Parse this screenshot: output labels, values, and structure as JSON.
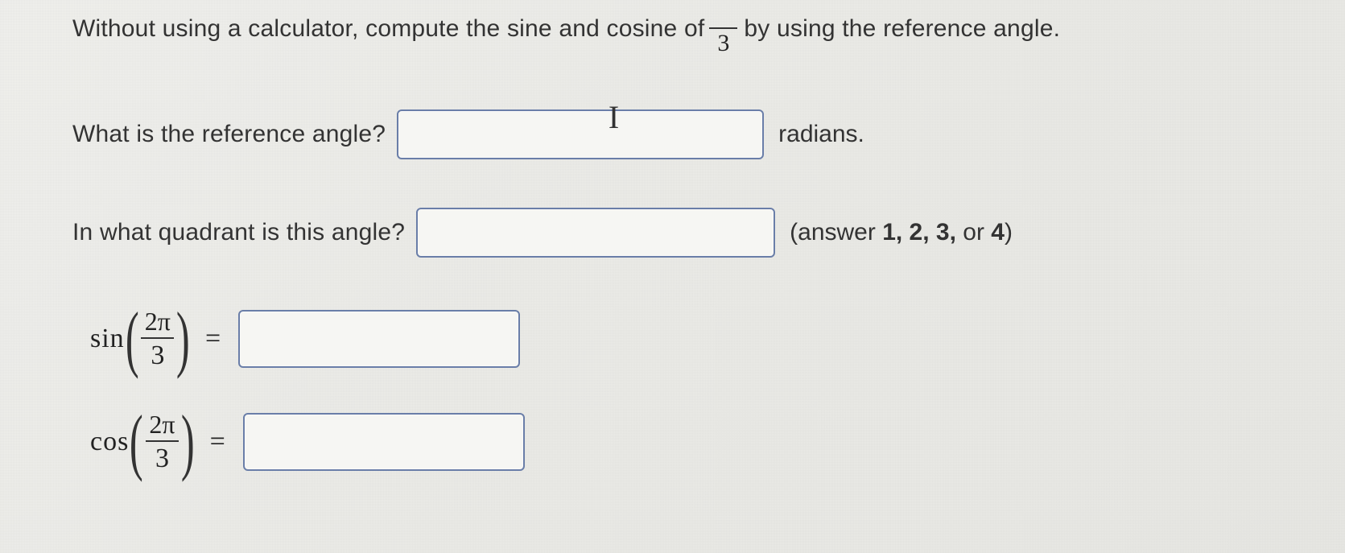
{
  "question": {
    "line1_before": "Without using a calculator, compute the sine and cosine of ",
    "angle_numerator": "",
    "angle_denominator": "3",
    "line1_after": " by using the reference angle."
  },
  "ref_angle": {
    "prompt": "What is the reference angle?",
    "after": "radians."
  },
  "quadrant": {
    "prompt": "In what quadrant is this angle?",
    "after_pre": "(answer ",
    "opts": "1, 2, 3, ",
    "opts_or": "or ",
    "opts_last": "4",
    "after_post": ")"
  },
  "sin": {
    "fn": "sin",
    "num": "2π",
    "den": "3",
    "eq": "="
  },
  "cos": {
    "fn": "cos",
    "num": "2π",
    "den": "3",
    "eq": "="
  }
}
